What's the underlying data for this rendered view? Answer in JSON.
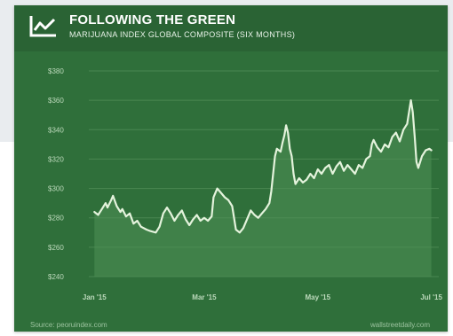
{
  "header": {
    "title": "FOLLOWING THE GREEN",
    "subtitle": "MARIJUANA INDEX GLOBAL COMPOSITE (SIX MONTHS)",
    "logo_icon": "line-chart-icon"
  },
  "footer": {
    "source": "Source: peoruindex.com",
    "site": "wallstreetdaily.com"
  },
  "colors": {
    "card": "#2f6f3a",
    "header": "#2a6334",
    "line": "#e4f3dc",
    "fill": "#4f8f55",
    "grid": "#4a8752",
    "tick_text": "#bcd9bb"
  },
  "chart_data": {
    "type": "line",
    "title": "FOLLOWING THE GREEN",
    "subtitle": "MARIJUANA INDEX GLOBAL COMPOSITE (SIX MONTHS)",
    "xlabel": "",
    "ylabel": "",
    "ylim": [
      240,
      380
    ],
    "yticks": [
      240,
      260,
      280,
      300,
      320,
      340,
      360,
      380
    ],
    "ytick_labels": [
      "$240",
      "$260",
      "$280",
      "$300",
      "$320",
      "$340",
      "$360",
      "$380"
    ],
    "xticks": [
      {
        "label": "Jan '15",
        "x": 0
      },
      {
        "label": "Mar '15",
        "x": 59
      },
      {
        "label": "May '15",
        "x": 120
      },
      {
        "label": "Jul '15",
        "x": 181
      }
    ],
    "xlim": [
      -3,
      185
    ],
    "grid": true,
    "legend": "none",
    "series": [
      {
        "values": [
          [
            0,
            284
          ],
          [
            2,
            282
          ],
          [
            4,
            286
          ],
          [
            6,
            290
          ],
          [
            7,
            287
          ],
          [
            9,
            292
          ],
          [
            10,
            295
          ],
          [
            12,
            288
          ],
          [
            14,
            284
          ],
          [
            15,
            286
          ],
          [
            17,
            281
          ],
          [
            19,
            283
          ],
          [
            21,
            276
          ],
          [
            23,
            278
          ],
          [
            25,
            274
          ],
          [
            28,
            272
          ],
          [
            30,
            271
          ],
          [
            33,
            270
          ],
          [
            35,
            274
          ],
          [
            37,
            283
          ],
          [
            39,
            287
          ],
          [
            41,
            283
          ],
          [
            43,
            278
          ],
          [
            45,
            282
          ],
          [
            47,
            285
          ],
          [
            49,
            279
          ],
          [
            51,
            275
          ],
          [
            53,
            279
          ],
          [
            55,
            282
          ],
          [
            57,
            278
          ],
          [
            59,
            280
          ],
          [
            61,
            278
          ],
          [
            63,
            281
          ],
          [
            64,
            294
          ],
          [
            66,
            300
          ],
          [
            68,
            297
          ],
          [
            70,
            294
          ],
          [
            72,
            292
          ],
          [
            74,
            288
          ],
          [
            75,
            280
          ],
          [
            76,
            272
          ],
          [
            78,
            270
          ],
          [
            80,
            273
          ],
          [
            82,
            279
          ],
          [
            84,
            285
          ],
          [
            86,
            282
          ],
          [
            88,
            280
          ],
          [
            90,
            283
          ],
          [
            92,
            286
          ],
          [
            94,
            290
          ],
          [
            95,
            298
          ],
          [
            96,
            310
          ],
          [
            97,
            322
          ],
          [
            98,
            327
          ],
          [
            100,
            325
          ],
          [
            101,
            331
          ],
          [
            102,
            336
          ],
          [
            103,
            343
          ],
          [
            104,
            338
          ],
          [
            105,
            327
          ],
          [
            106,
            322
          ],
          [
            107,
            310
          ],
          [
            108,
            303
          ],
          [
            110,
            307
          ],
          [
            112,
            304
          ],
          [
            114,
            306
          ],
          [
            116,
            310
          ],
          [
            118,
            307
          ],
          [
            120,
            313
          ],
          [
            122,
            310
          ],
          [
            124,
            314
          ],
          [
            126,
            316
          ],
          [
            128,
            310
          ],
          [
            130,
            315
          ],
          [
            132,
            318
          ],
          [
            134,
            312
          ],
          [
            136,
            316
          ],
          [
            138,
            313
          ],
          [
            140,
            310
          ],
          [
            142,
            316
          ],
          [
            144,
            314
          ],
          [
            146,
            320
          ],
          [
            148,
            322
          ],
          [
            149,
            330
          ],
          [
            150,
            333
          ],
          [
            152,
            328
          ],
          [
            154,
            325
          ],
          [
            156,
            330
          ],
          [
            158,
            328
          ],
          [
            160,
            335
          ],
          [
            162,
            338
          ],
          [
            164,
            332
          ],
          [
            166,
            340
          ],
          [
            168,
            344
          ],
          [
            169,
            352
          ],
          [
            170,
            360
          ],
          [
            171,
            352
          ],
          [
            172,
            336
          ],
          [
            173,
            318
          ],
          [
            174,
            314
          ],
          [
            175,
            318
          ],
          [
            176,
            322
          ],
          [
            178,
            326
          ],
          [
            180,
            327
          ],
          [
            181,
            326
          ]
        ]
      }
    ]
  }
}
